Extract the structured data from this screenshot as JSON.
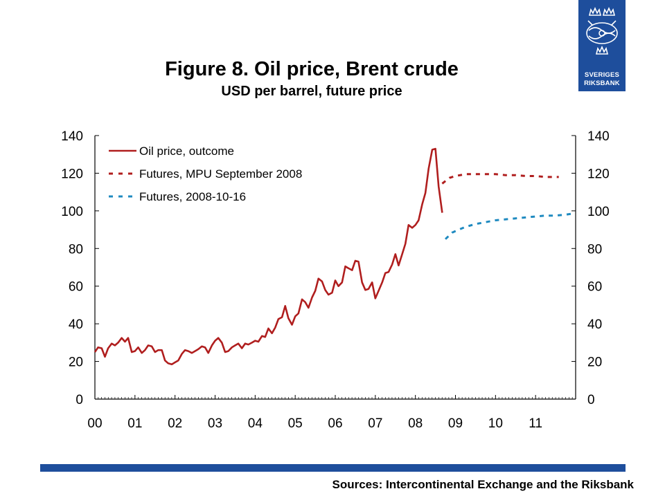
{
  "header": {
    "title": "Figure 8. Oil price, Brent crude",
    "subtitle": "USD per barrel, future price"
  },
  "logo": {
    "line1": "SVERIGES",
    "line2": "RIKSBANK",
    "icon": "riksbank-crest-icon"
  },
  "footer": {
    "source": "Sources: Intercontinental Exchange and the Riksbank"
  },
  "colors": {
    "brand_blue": "#1e4e9c",
    "outcome": "#b01e1e",
    "futures_mpu": "#b01e1e",
    "futures_oct": "#1f8ac0"
  },
  "chart_data": {
    "type": "line",
    "x_ticks": [
      "00",
      "01",
      "02",
      "03",
      "04",
      "05",
      "06",
      "07",
      "08",
      "09",
      "10",
      "11"
    ],
    "x_range": [
      2000,
      2012
    ],
    "y_range": [
      0,
      140
    ],
    "y_ticks": [
      0,
      20,
      40,
      60,
      80,
      100,
      120,
      140
    ],
    "y_ticks_right": [
      0,
      20,
      40,
      60,
      80,
      100,
      120,
      140
    ],
    "grid": false,
    "legend_position": "top-left",
    "series": [
      {
        "name": "Oil price, outcome",
        "style": "solid",
        "color": "#b01e1e",
        "points": [
          [
            2000.0,
            25
          ],
          [
            2000.08,
            27.5
          ],
          [
            2000.17,
            27
          ],
          [
            2000.25,
            22.5
          ],
          [
            2000.33,
            27
          ],
          [
            2000.42,
            29.5
          ],
          [
            2000.5,
            28.5
          ],
          [
            2000.58,
            30
          ],
          [
            2000.67,
            32.5
          ],
          [
            2000.75,
            30.5
          ],
          [
            2000.83,
            32.5
          ],
          [
            2000.92,
            25
          ],
          [
            2001.0,
            25.5
          ],
          [
            2001.08,
            27.5
          ],
          [
            2001.17,
            24.5
          ],
          [
            2001.25,
            26
          ],
          [
            2001.33,
            28.5
          ],
          [
            2001.42,
            28
          ],
          [
            2001.5,
            25
          ],
          [
            2001.58,
            26
          ],
          [
            2001.67,
            26
          ],
          [
            2001.75,
            20.5
          ],
          [
            2001.83,
            19
          ],
          [
            2001.92,
            18.5
          ],
          [
            2002.0,
            19.5
          ],
          [
            2002.08,
            20.5
          ],
          [
            2002.17,
            24
          ],
          [
            2002.25,
            26
          ],
          [
            2002.33,
            25.5
          ],
          [
            2002.42,
            24.5
          ],
          [
            2002.5,
            25.5
          ],
          [
            2002.58,
            26.5
          ],
          [
            2002.67,
            28
          ],
          [
            2002.75,
            27.5
          ],
          [
            2002.83,
            24.5
          ],
          [
            2002.92,
            28.5
          ],
          [
            2003.0,
            31
          ],
          [
            2003.08,
            32.5
          ],
          [
            2003.17,
            30
          ],
          [
            2003.25,
            25
          ],
          [
            2003.33,
            25.5
          ],
          [
            2003.42,
            27.5
          ],
          [
            2003.5,
            28.5
          ],
          [
            2003.58,
            29.5
          ],
          [
            2003.67,
            27
          ],
          [
            2003.75,
            29.5
          ],
          [
            2003.83,
            29
          ],
          [
            2003.92,
            30
          ],
          [
            2004.0,
            31
          ],
          [
            2004.08,
            30.5
          ],
          [
            2004.17,
            33.5
          ],
          [
            2004.25,
            33
          ],
          [
            2004.33,
            37.5
          ],
          [
            2004.42,
            35
          ],
          [
            2004.5,
            38
          ],
          [
            2004.58,
            42.5
          ],
          [
            2004.67,
            43.5
          ],
          [
            2004.75,
            49.5
          ],
          [
            2004.83,
            43
          ],
          [
            2004.92,
            39.5
          ],
          [
            2005.0,
            44
          ],
          [
            2005.08,
            45.5
          ],
          [
            2005.17,
            53
          ],
          [
            2005.25,
            51.5
          ],
          [
            2005.33,
            48.5
          ],
          [
            2005.42,
            54
          ],
          [
            2005.5,
            57.5
          ],
          [
            2005.58,
            64
          ],
          [
            2005.67,
            62.5
          ],
          [
            2005.75,
            58
          ],
          [
            2005.83,
            55.5
          ],
          [
            2005.92,
            56.5
          ],
          [
            2006.0,
            63
          ],
          [
            2006.08,
            60
          ],
          [
            2006.17,
            62
          ],
          [
            2006.25,
            70.5
          ],
          [
            2006.33,
            69.5
          ],
          [
            2006.42,
            68.5
          ],
          [
            2006.5,
            73.5
          ],
          [
            2006.58,
            73
          ],
          [
            2006.67,
            62
          ],
          [
            2006.75,
            58
          ],
          [
            2006.83,
            58.5
          ],
          [
            2006.92,
            62
          ],
          [
            2007.0,
            53.5
          ],
          [
            2007.08,
            57.5
          ],
          [
            2007.17,
            62
          ],
          [
            2007.25,
            67
          ],
          [
            2007.33,
            67.5
          ],
          [
            2007.42,
            71.5
          ],
          [
            2007.5,
            77
          ],
          [
            2007.58,
            71
          ],
          [
            2007.67,
            77
          ],
          [
            2007.75,
            82.5
          ],
          [
            2007.83,
            92.5
          ],
          [
            2007.92,
            91
          ],
          [
            2008.0,
            92.5
          ],
          [
            2008.08,
            95
          ],
          [
            2008.17,
            103.5
          ],
          [
            2008.25,
            109.5
          ],
          [
            2008.33,
            122.5
          ],
          [
            2008.42,
            132.5
          ],
          [
            2008.5,
            133
          ],
          [
            2008.58,
            113
          ],
          [
            2008.67,
            99
          ]
        ]
      },
      {
        "name": "Futures, MPU September 2008",
        "style": "dashed",
        "color": "#b01e1e",
        "points": [
          [
            2008.67,
            114.5
          ],
          [
            2008.85,
            117.5
          ],
          [
            2009.0,
            118.5
          ],
          [
            2009.25,
            119.5
          ],
          [
            2009.5,
            119.5
          ],
          [
            2009.75,
            119.5
          ],
          [
            2010.0,
            119.5
          ],
          [
            2010.25,
            119
          ],
          [
            2010.5,
            119
          ],
          [
            2010.75,
            118.5
          ],
          [
            2011.0,
            118.5
          ],
          [
            2011.25,
            118
          ],
          [
            2011.5,
            118
          ],
          [
            2011.58,
            118
          ]
        ]
      },
      {
        "name": "Futures, 2008-10-16",
        "style": "dashed",
        "color": "#1f8ac0",
        "points": [
          [
            2008.75,
            85
          ],
          [
            2008.92,
            88.5
          ],
          [
            2009.08,
            90
          ],
          [
            2009.25,
            91.5
          ],
          [
            2009.5,
            93
          ],
          [
            2009.75,
            94
          ],
          [
            2010.0,
            95
          ],
          [
            2010.25,
            95.5
          ],
          [
            2010.5,
            96
          ],
          [
            2010.75,
            96.5
          ],
          [
            2011.0,
            97
          ],
          [
            2011.25,
            97.5
          ],
          [
            2011.5,
            97.5
          ],
          [
            2011.75,
            98
          ],
          [
            2011.92,
            98.5
          ]
        ]
      }
    ]
  }
}
